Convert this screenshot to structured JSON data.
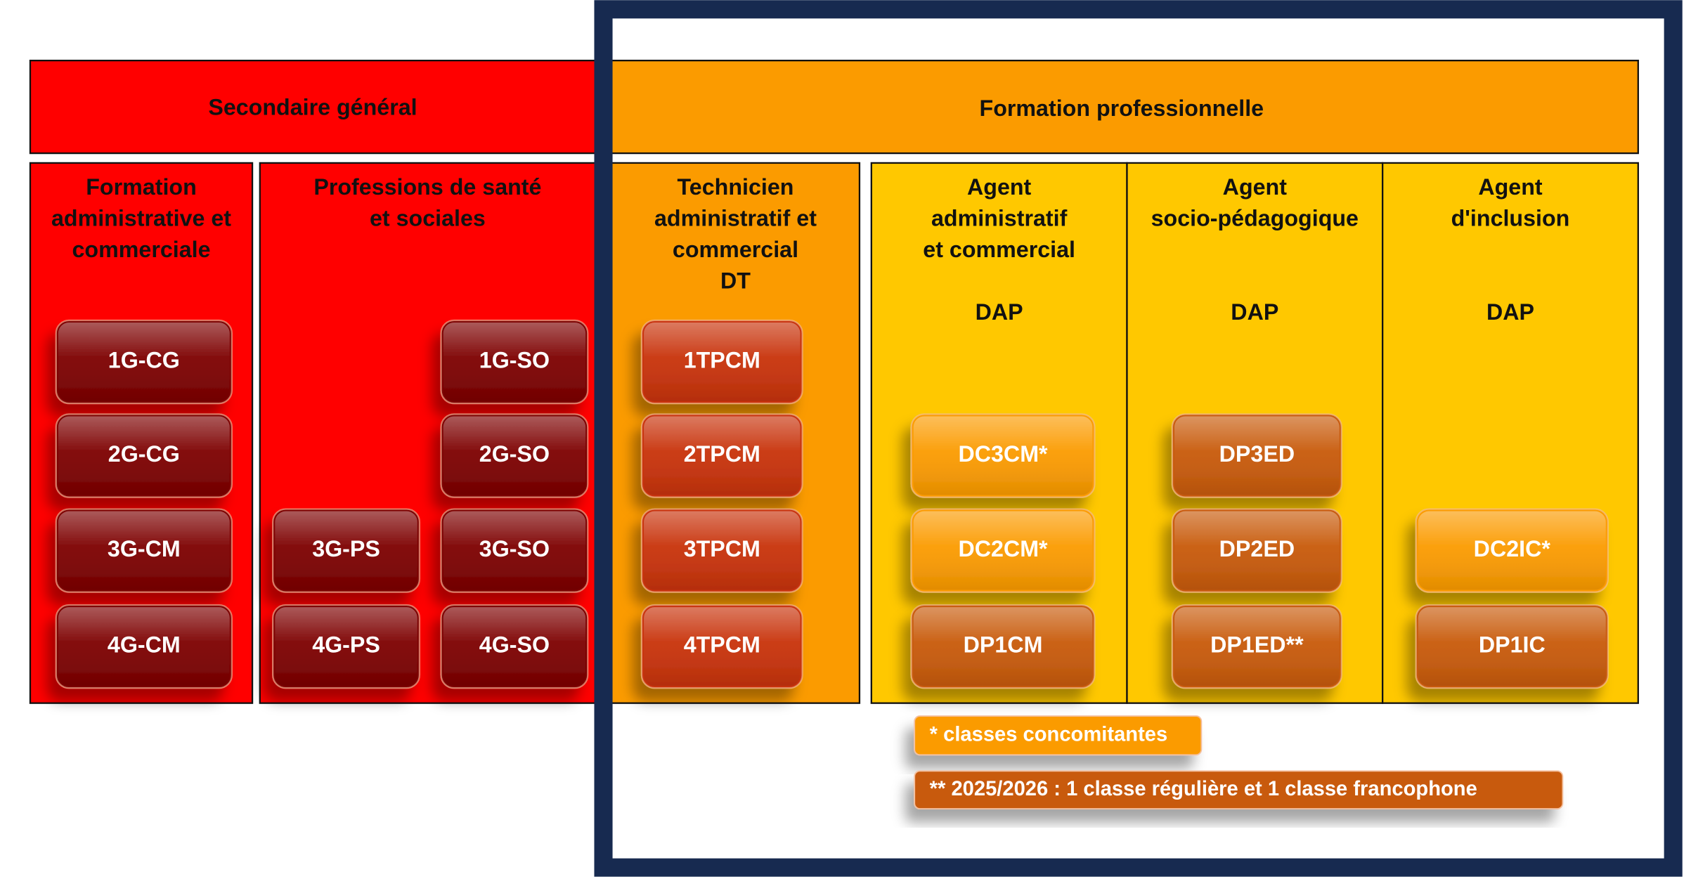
{
  "header": {
    "sections": [
      "Secondaire général",
      "Formation professionnelle"
    ]
  },
  "columns": [
    {
      "title": [
        "Formation",
        "administrative et",
        "commerciale"
      ],
      "color": "#ff0000",
      "classes": [
        {
          "label": "1G-CG",
          "color": "#7d0000"
        },
        {
          "label": "2G-CG",
          "color": "#7d0000"
        },
        {
          "label": "3G-CM",
          "color": "#7d0000"
        },
        {
          "label": "4G-CM",
          "color": "#7d0000"
        }
      ]
    },
    {
      "title": [
        "Professions de santé",
        "et sociales"
      ],
      "color": "#ff0000",
      "classes": [
        {
          "label": "1G-SO",
          "color": "#7d0000"
        },
        {
          "label": "2G-SO",
          "color": "#7d0000"
        },
        {
          "label": "3G-PS",
          "color": "#7d0000"
        },
        {
          "label": "3G-SO",
          "color": "#7d0000"
        },
        {
          "label": "4G-PS",
          "color": "#7d0000"
        },
        {
          "label": "4G-SO",
          "color": "#7d0000"
        }
      ]
    },
    {
      "title": [
        "Technicien",
        "administratif et",
        "commercial",
        "DT"
      ],
      "color": "#fb9b00",
      "classes": [
        {
          "label": "1TPCM",
          "color": "#c8320a"
        },
        {
          "label": "2TPCM",
          "color": "#c8320a"
        },
        {
          "label": "3TPCM",
          "color": "#c8320a"
        },
        {
          "label": "4TPCM",
          "color": "#c8320a"
        }
      ]
    },
    {
      "title": [
        "Agent",
        "administratif",
        "et commercial"
      ],
      "subtitle": "DAP",
      "color": "#ffc800",
      "classes": [
        {
          "label": "DC3CM*",
          "color": "#fb9b00"
        },
        {
          "label": "DC2CM*",
          "color": "#fb9b00"
        },
        {
          "label": "DP1CM",
          "color": "#c85a0a"
        }
      ]
    },
    {
      "title": [
        "Agent",
        "socio-pédagogique"
      ],
      "subtitle": "DAP",
      "color": "#ffc800",
      "classes": [
        {
          "label": "DP3ED",
          "color": "#c85a0a"
        },
        {
          "label": "DP2ED",
          "color": "#c85a0a"
        },
        {
          "label": "DP1ED**",
          "color": "#c85a0a"
        }
      ]
    },
    {
      "title": [
        "Agent",
        "d'inclusion"
      ],
      "subtitle": "DAP",
      "color": "#ffc800",
      "classes": [
        {
          "label": "DC2IC*",
          "color": "#fb9b00"
        },
        {
          "label": "DP1IC",
          "color": "#c85a0a"
        }
      ]
    }
  ],
  "notes": [
    {
      "text": "* classes concomitantes",
      "color": "#fb9b00"
    },
    {
      "text": "** 2025/2026 : 1 classe régulière et 1 classe francophone",
      "color": "#c85a0a"
    }
  ]
}
